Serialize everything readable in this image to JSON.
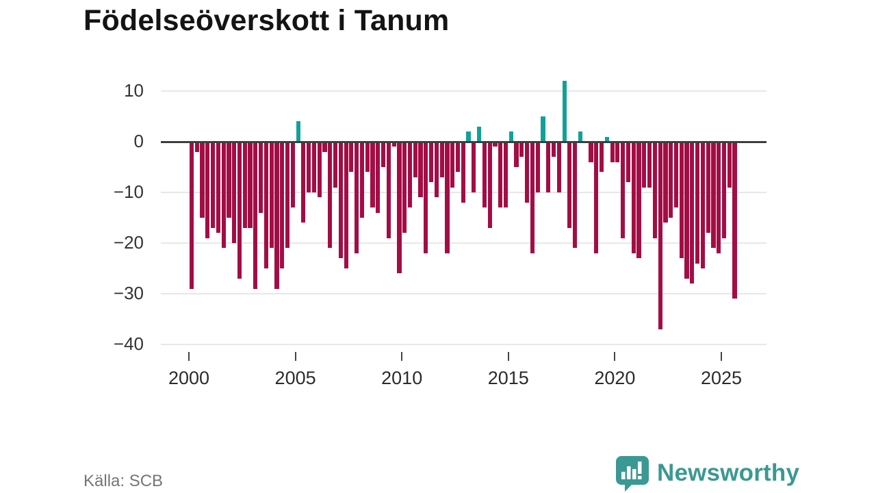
{
  "title": "Födelseöverskott i Tanum",
  "source": "Källa: SCB",
  "brand": {
    "name": "Newsworthy",
    "color": "#3a9992",
    "icon": "speech-bubble-bar-chart-icon"
  },
  "colors": {
    "positive_bar": "#11a19a",
    "negative_bar": "#a30d45",
    "zero_axis": "#3d3d3d",
    "gridline": "#e7e7e7",
    "tick_label": "#2b2b2b",
    "y_label": "#333333",
    "source_text": "#757575"
  },
  "chart_data": {
    "type": "bar",
    "title": "Födelseöverskott i Tanum",
    "xlabel": "",
    "ylabel": "",
    "x_unit": "quarter",
    "start_year": 2000,
    "start_quarter": 1,
    "end_label": "2025 Q3",
    "x_tick_years": [
      2000,
      2005,
      2010,
      2015,
      2020,
      2025
    ],
    "y_ticks": [
      10,
      0,
      -10,
      -20,
      -30,
      -40
    ],
    "ylim": [
      -40,
      12
    ],
    "grid": true,
    "legend": false,
    "values": [
      -29,
      -2,
      -15,
      -19,
      -17,
      -18,
      -21,
      -15,
      -20,
      -27,
      -17,
      -17,
      -29,
      -14,
      -25,
      -21,
      -29,
      -25,
      -21,
      -13,
      4,
      -16,
      -10,
      -10,
      -11,
      -2,
      -21,
      -9,
      -23,
      -25,
      -6,
      -22,
      -15,
      -6,
      -13,
      -14,
      -5,
      -19,
      -1,
      -26,
      -18,
      -13,
      -7,
      -11,
      -22,
      -8,
      -11,
      -7,
      -22,
      -9,
      -6,
      -12,
      2,
      -10,
      3,
      -13,
      -17,
      -1,
      -13,
      -13,
      2,
      -5,
      -3,
      -12,
      -22,
      -10,
      5,
      -10,
      -3,
      -10,
      12,
      -17,
      -21,
      2,
      0,
      -4,
      -22,
      -6,
      1,
      -4,
      -4,
      -19,
      -8,
      -22,
      -23,
      -9,
      -9,
      -19,
      -37,
      -16,
      -15,
      -13,
      -23,
      -27,
      -28,
      -24,
      -25,
      -18,
      -21,
      -22,
      -19,
      -9,
      -31
    ]
  }
}
